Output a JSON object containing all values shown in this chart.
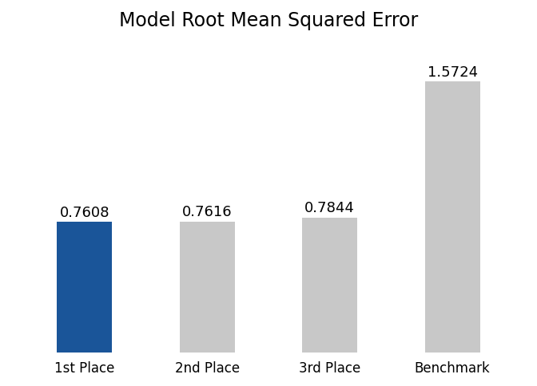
{
  "title": "Model Root Mean Squared Error",
  "categories": [
    "1st Place",
    "2nd Place",
    "3rd Place",
    "Benchmark"
  ],
  "values": [
    0.7608,
    0.7616,
    0.7844,
    1.5724
  ],
  "bar_colors": [
    "#1a5599",
    "#c8c8c8",
    "#c8c8c8",
    "#c8c8c8"
  ],
  "bar_labels": [
    "0.7608",
    "0.7616",
    "0.7844",
    "1.5724"
  ],
  "ylim": [
    0,
    1.82
  ],
  "title_fontsize": 17,
  "label_fontsize": 13,
  "tick_fontsize": 12,
  "bar_width": 0.45,
  "background_color": "#ffffff"
}
